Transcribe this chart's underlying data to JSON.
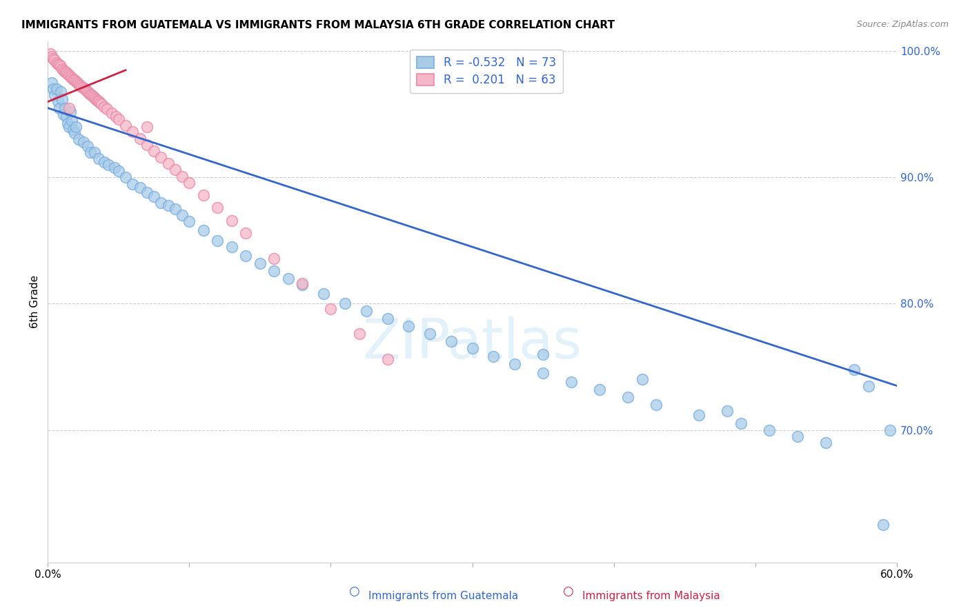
{
  "title": "IMMIGRANTS FROM GUATEMALA VS IMMIGRANTS FROM MALAYSIA 6TH GRADE CORRELATION CHART",
  "source": "Source: ZipAtlas.com",
  "ylabel": "6th Grade",
  "watermark": "ZIPatlas",
  "xmin": 0.0,
  "xmax": 0.6,
  "ymin": 0.595,
  "ymax": 1.008,
  "right_ytick_vals": [
    1.0,
    0.9,
    0.8,
    0.7
  ],
  "right_ytick_labels": [
    "100.0%",
    "90.0%",
    "80.0%",
    "70.0%"
  ],
  "blue_color": "#a8cce8",
  "blue_edge_color": "#7aade0",
  "pink_color": "#f5b8c8",
  "pink_edge_color": "#e888a8",
  "blue_line_color": "#3366cc",
  "pink_line_color": "#cc2244",
  "background_color": "#ffffff",
  "grid_color": "#cccccc",
  "blue_r": -0.532,
  "blue_n": 73,
  "pink_r": 0.201,
  "pink_n": 63,
  "blue_line_x0": 0.0,
  "blue_line_y0": 0.955,
  "blue_line_x1": 0.6,
  "blue_line_y1": 0.735,
  "pink_line_x0": 0.0,
  "pink_line_y0": 0.96,
  "pink_line_x1": 0.055,
  "pink_line_y1": 0.985,
  "blue_scatter_x": [
    0.003,
    0.004,
    0.005,
    0.006,
    0.007,
    0.008,
    0.009,
    0.01,
    0.011,
    0.012,
    0.013,
    0.014,
    0.015,
    0.016,
    0.017,
    0.018,
    0.019,
    0.02,
    0.022,
    0.025,
    0.028,
    0.03,
    0.033,
    0.036,
    0.04,
    0.043,
    0.047,
    0.05,
    0.055,
    0.06,
    0.065,
    0.07,
    0.075,
    0.08,
    0.085,
    0.09,
    0.095,
    0.1,
    0.11,
    0.12,
    0.13,
    0.14,
    0.15,
    0.16,
    0.17,
    0.18,
    0.195,
    0.21,
    0.225,
    0.24,
    0.255,
    0.27,
    0.285,
    0.3,
    0.315,
    0.33,
    0.35,
    0.37,
    0.39,
    0.41,
    0.43,
    0.46,
    0.49,
    0.51,
    0.53,
    0.55,
    0.57,
    0.58,
    0.59,
    0.595,
    0.35,
    0.42,
    0.48
  ],
  "blue_scatter_y": [
    0.975,
    0.97,
    0.965,
    0.97,
    0.96,
    0.955,
    0.968,
    0.962,
    0.95,
    0.955,
    0.948,
    0.943,
    0.94,
    0.952,
    0.945,
    0.938,
    0.935,
    0.94,
    0.93,
    0.928,
    0.925,
    0.92,
    0.92,
    0.915,
    0.912,
    0.91,
    0.908,
    0.905,
    0.9,
    0.895,
    0.892,
    0.888,
    0.885,
    0.88,
    0.878,
    0.875,
    0.87,
    0.865,
    0.858,
    0.85,
    0.845,
    0.838,
    0.832,
    0.826,
    0.82,
    0.815,
    0.808,
    0.8,
    0.794,
    0.788,
    0.782,
    0.776,
    0.77,
    0.765,
    0.758,
    0.752,
    0.745,
    0.738,
    0.732,
    0.726,
    0.72,
    0.712,
    0.705,
    0.7,
    0.695,
    0.69,
    0.748,
    0.735,
    0.625,
    0.7,
    0.76,
    0.74,
    0.715
  ],
  "pink_scatter_x": [
    0.002,
    0.003,
    0.004,
    0.005,
    0.006,
    0.007,
    0.008,
    0.009,
    0.01,
    0.011,
    0.012,
    0.013,
    0.014,
    0.015,
    0.016,
    0.017,
    0.018,
    0.019,
    0.02,
    0.021,
    0.022,
    0.023,
    0.024,
    0.025,
    0.026,
    0.027,
    0.028,
    0.029,
    0.03,
    0.031,
    0.032,
    0.033,
    0.034,
    0.035,
    0.036,
    0.037,
    0.038,
    0.04,
    0.042,
    0.045,
    0.048,
    0.05,
    0.055,
    0.06,
    0.065,
    0.07,
    0.075,
    0.08,
    0.085,
    0.09,
    0.095,
    0.1,
    0.11,
    0.12,
    0.13,
    0.14,
    0.16,
    0.18,
    0.2,
    0.22,
    0.24,
    0.07,
    0.015
  ],
  "pink_scatter_y": [
    0.998,
    0.996,
    0.994,
    0.993,
    0.991,
    0.99,
    0.989,
    0.988,
    0.986,
    0.985,
    0.984,
    0.983,
    0.982,
    0.981,
    0.98,
    0.979,
    0.978,
    0.977,
    0.976,
    0.975,
    0.974,
    0.973,
    0.972,
    0.971,
    0.97,
    0.969,
    0.968,
    0.967,
    0.966,
    0.965,
    0.964,
    0.963,
    0.962,
    0.961,
    0.96,
    0.959,
    0.958,
    0.956,
    0.954,
    0.951,
    0.948,
    0.946,
    0.941,
    0.936,
    0.931,
    0.926,
    0.921,
    0.916,
    0.911,
    0.906,
    0.901,
    0.896,
    0.886,
    0.876,
    0.866,
    0.856,
    0.836,
    0.816,
    0.796,
    0.776,
    0.756,
    0.94,
    0.955
  ]
}
